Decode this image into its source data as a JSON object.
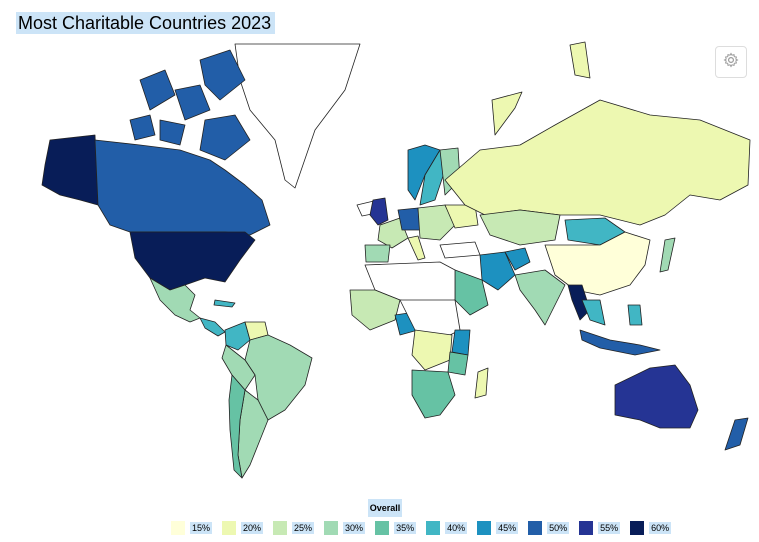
{
  "title": "Most Charitable Countries 2023",
  "legend": {
    "title": "Overall",
    "items": [
      {
        "label": "15%",
        "color": "#ffffd9"
      },
      {
        "label": "20%",
        "color": "#edf8b1"
      },
      {
        "label": "25%",
        "color": "#c7e9b4"
      },
      {
        "label": "30%",
        "color": "#a1dab4"
      },
      {
        "label": "35%",
        "color": "#66c2a4"
      },
      {
        "label": "40%",
        "color": "#41b6c4"
      },
      {
        "label": "45%",
        "color": "#1d91c0"
      },
      {
        "label": "50%",
        "color": "#225ea8"
      },
      {
        "label": "55%",
        "color": "#253494"
      },
      {
        "label": "60%",
        "color": "#081d58"
      }
    ]
  },
  "settings_icon": "gear-icon"
}
